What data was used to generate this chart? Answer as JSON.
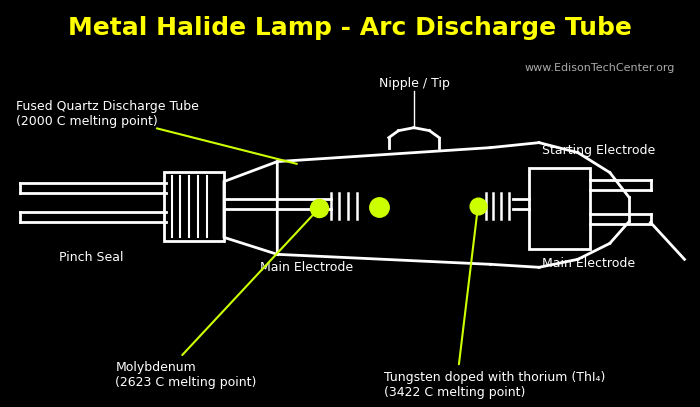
{
  "title": "Metal Halide Lamp - Arc Discharge Tube",
  "title_color": "#FFFF00",
  "bg_color": "#000000",
  "diagram_color": "#FFFFFF",
  "accent_color": "#CCFF00",
  "watermark": "www.EdisonTechCenter.org",
  "labels": {
    "fused_quartz": "Fused Quartz Discharge Tube\n(2000 C melting point)",
    "nipple": "Nipple / Tip",
    "starting_electrode": "Starting Electrode",
    "main_electrode_left": "Main Electrode",
    "main_electrode_right": "Main Electrode",
    "pinch_seal": "Pinch Seal",
    "molybdenum": "Molybdenum\n(2623 C melting point)",
    "tungsten": "Tungsten doped with thorium (ThI₄)\n(3422 C melting point)"
  },
  "label_color": "#FFFFFF",
  "figsize": [
    7.0,
    4.07
  ],
  "dpi": 100
}
